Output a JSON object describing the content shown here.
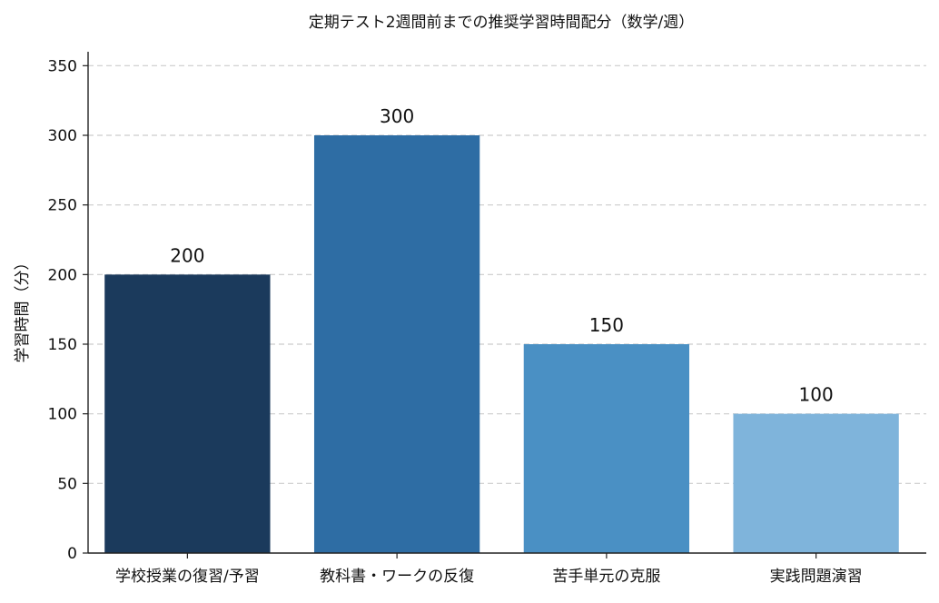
{
  "chart_data": {
    "type": "bar",
    "title": "定期テスト2週間前までの推奨学習時間配分（数学/週）",
    "xlabel": "",
    "ylabel": "学習時間（分）",
    "categories": [
      "学校授業の復習/予習",
      "教科書・ワークの反復",
      "苦手単元の克服",
      "実践問題演習"
    ],
    "values": [
      200,
      300,
      150,
      100
    ],
    "data_labels": [
      "200",
      "300",
      "150",
      "100"
    ],
    "ylim": [
      0,
      360
    ],
    "yticks": [
      0,
      50,
      100,
      150,
      200,
      250,
      300,
      350
    ],
    "grid": "horizontal-dashed",
    "legend": "none",
    "colors": [
      "#1b3a5c",
      "#2e6da4",
      "#4a90c4",
      "#7fb4db"
    ],
    "axis_color": "#222222",
    "grid_color": "#cccccc"
  }
}
